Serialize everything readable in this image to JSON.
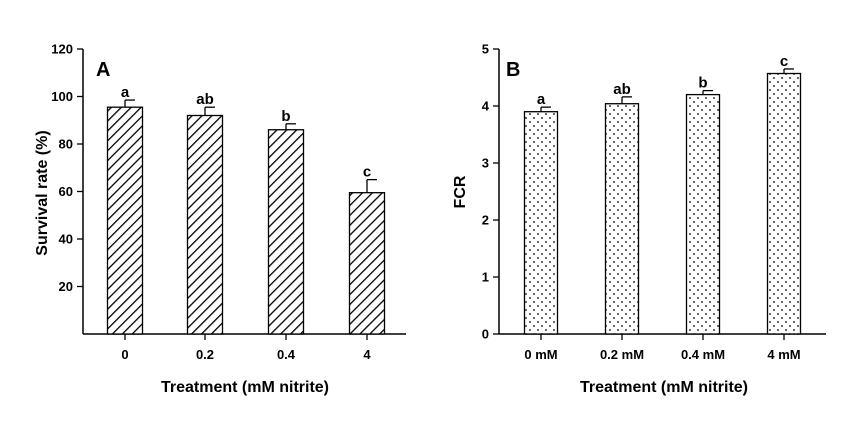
{
  "chart_data": [
    {
      "panel": "A",
      "type": "bar",
      "categories": [
        "0",
        "0.2",
        "0.4",
        "4"
      ],
      "values": [
        95.5,
        92,
        86,
        59.5
      ],
      "errors": [
        3,
        3.5,
        2.5,
        5.5
      ],
      "significance": [
        "a",
        "ab",
        "b",
        "c"
      ],
      "xlabel": "Treatment (mM nitrite)",
      "ylabel": "Survival rate (%)",
      "ylim": [
        0,
        120
      ],
      "yticks": [
        "20",
        "40",
        "60",
        "80",
        "100",
        "120"
      ],
      "pattern": "diagonal-hatch"
    },
    {
      "panel": "B",
      "type": "bar",
      "categories": [
        "0 mM",
        "0.2 mM",
        "0.4 mM",
        "4 mM"
      ],
      "values": [
        3.9,
        4.04,
        4.2,
        4.57
      ],
      "errors": [
        0.08,
        0.12,
        0.07,
        0.08
      ],
      "significance": [
        "a",
        "ab",
        "b",
        "c"
      ],
      "xlabel": "Treatment (mM nitrite)",
      "ylabel": "FCR",
      "ylim": [
        0,
        5
      ],
      "yticks": [
        "0",
        "1",
        "2",
        "3",
        "4",
        "5"
      ],
      "pattern": "dots"
    }
  ]
}
